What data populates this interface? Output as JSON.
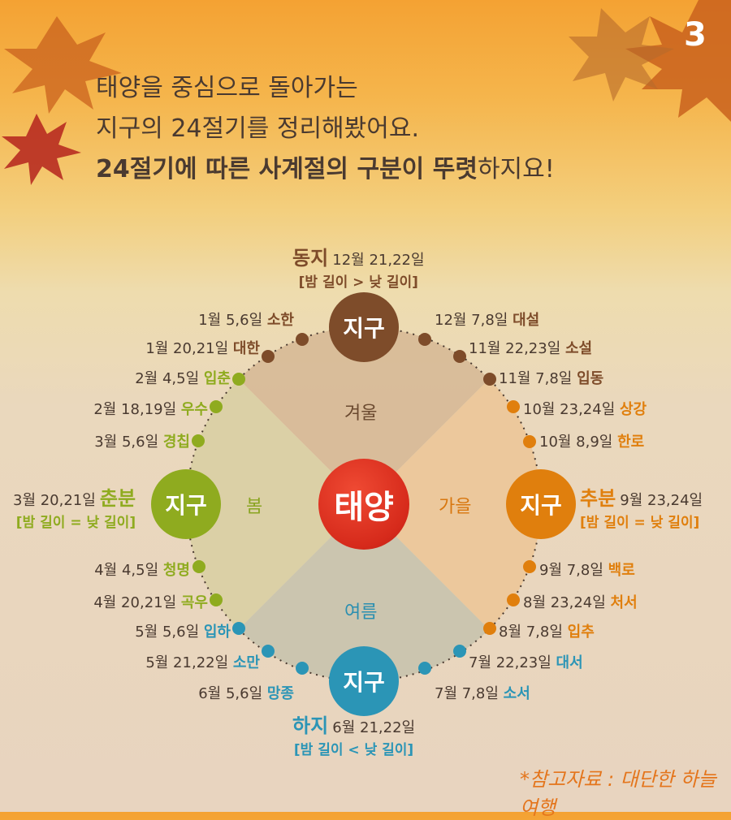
{
  "page_number": "3",
  "intro": {
    "line1": "태양을 중심으로 돌아가는",
    "line2": "지구의 24절기를 정리해봤어요.",
    "line3_bold": "24절기에 따른 사계절의 구분이 뚜렷",
    "line3_rest": "하지요!"
  },
  "colors": {
    "winter": "#7e4c2a",
    "spring": "#8fab1f",
    "summer": "#2b95b6",
    "autumn": "#e07f0d",
    "sun": "#d62a1b"
  },
  "sun_label": "태양",
  "earth_label": "지구",
  "seasons": {
    "winter": "겨울",
    "spring": "봄",
    "summer": "여름",
    "autumn": "가을"
  },
  "cardinal": {
    "dongji": {
      "name": "동지",
      "date": "12월 21,22일",
      "note": "[밤 길이 > 낮 길이]"
    },
    "haji": {
      "name": "하지",
      "date": "6월 21,22일",
      "note": "[밤 길이 < 낮 길이]"
    },
    "chunbun": {
      "date": "3월 20,21일",
      "name": "춘분",
      "note": "[밤 길이 = 낮 길이]"
    },
    "chubun": {
      "name": "추분",
      "date": "9월 23,24일",
      "note": "[밤 길이 = 낮 길이]"
    }
  },
  "terms": [
    {
      "date": "1월 5,6일",
      "name": "소한"
    },
    {
      "date": "1월 20,21일",
      "name": "대한"
    },
    {
      "date": "2월 4,5일",
      "name": "입춘"
    },
    {
      "date": "2월 18,19일",
      "name": "우수"
    },
    {
      "date": "3월 5,6일",
      "name": "경칩"
    },
    {
      "date": "4월 4,5일",
      "name": "청명"
    },
    {
      "date": "4월 20,21일",
      "name": "곡우"
    },
    {
      "date": "5월 5,6일",
      "name": "입하"
    },
    {
      "date": "5월 21,22일",
      "name": "소만"
    },
    {
      "date": "6월 5,6일",
      "name": "망종"
    },
    {
      "date": "12월 7,8일",
      "name": "대설"
    },
    {
      "date": "11월 22,23일",
      "name": "소설"
    },
    {
      "date": "11월 7,8일",
      "name": "입동"
    },
    {
      "date": "10월 23,24일",
      "name": "상강"
    },
    {
      "date": "10월 8,9일",
      "name": "한로"
    },
    {
      "date": "9월 7,8일",
      "name": "백로"
    },
    {
      "date": "8월 23,24일",
      "name": "처서"
    },
    {
      "date": "8월 7,8일",
      "name": "입추"
    },
    {
      "date": "7월 22,23일",
      "name": "대서"
    },
    {
      "date": "7월 7,8일",
      "name": "소서"
    }
  ],
  "source": "*참고자료 : 대단한 하늘여행"
}
